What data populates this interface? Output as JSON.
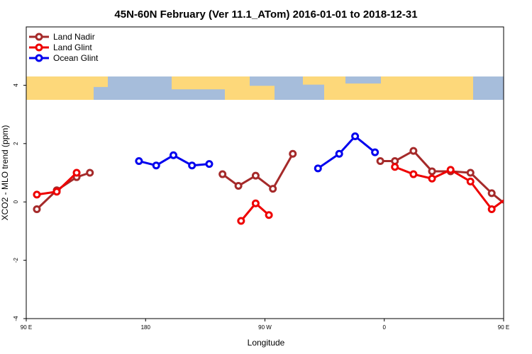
{
  "chart_data": {
    "type": "line",
    "title": "45N-60N February (Ver 11.1_ATom)   2016-01-01 to 2018-12-31",
    "xlabel": "Longitude",
    "ylabel": "XCO2 - MLO trend (ppm)",
    "xlim": [
      90,
      450
    ],
    "ylim": [
      -4,
      6
    ],
    "x_ticks": [
      {
        "value": 90,
        "label": "90 E"
      },
      {
        "value": 180,
        "label": "180"
      },
      {
        "value": 270,
        "label": "90 W"
      },
      {
        "value": 360,
        "label": "0"
      },
      {
        "value": 450,
        "label": "90 E"
      },
      {
        "value": 540,
        "label": "180"
      }
    ],
    "y_ticks": [
      {
        "value": -4,
        "label": "-4"
      },
      {
        "value": -2,
        "label": "-2"
      },
      {
        "value": 0,
        "label": "0"
      },
      {
        "value": 2,
        "label": "2"
      },
      {
        "value": 4,
        "label": "4"
      }
    ],
    "grid": false,
    "legend_position": "top-left",
    "map_strip": {
      "y_range": [
        3.5,
        4.3
      ],
      "ocean_color": "#a6bddb",
      "land_color": "#fdd87a"
    },
    "series": [
      {
        "name": "Land Nadir",
        "color": "#a52a2a",
        "segments": [
          {
            "x": [
              98,
              113,
              128,
              138
            ],
            "y": [
              -0.25,
              0.4,
              0.85,
              1.0
            ]
          },
          {
            "x": [
              238,
              250,
              263,
              276,
              291
            ],
            "y": [
              0.95,
              0.55,
              0.9,
              0.45,
              1.65
            ]
          },
          {
            "x": [
              357,
              368,
              382,
              396,
              410,
              425,
              441,
              456,
              470,
              485,
              498
            ],
            "y": [
              1.4,
              1.4,
              1.75,
              1.05,
              1.05,
              1.0,
              0.3,
              -0.25,
              0.4,
              0.85,
              1.0
            ]
          }
        ]
      },
      {
        "name": "Land Glint",
        "color": "#ee0000",
        "segments": [
          {
            "x": [
              98,
              113,
              128
            ],
            "y": [
              0.25,
              0.35,
              1.0
            ]
          },
          {
            "x": [
              252,
              263,
              273
            ],
            "y": [
              -0.65,
              -0.05,
              -0.45
            ]
          },
          {
            "x": [
              368,
              382,
              396,
              410,
              425,
              441,
              456,
              470,
              485
            ],
            "y": [
              1.2,
              0.95,
              0.8,
              1.1,
              0.7,
              -0.25,
              0.25,
              0.35,
              1.0
            ]
          }
        ]
      },
      {
        "name": "Ocean Glint",
        "color": "#0000ee",
        "segments": [
          {
            "x": [
              175,
              188,
              201,
              215,
              228
            ],
            "y": [
              1.4,
              1.25,
              1.6,
              1.25,
              1.3
            ]
          },
          {
            "x": [
              310,
              326,
              338,
              353
            ],
            "y": [
              1.15,
              1.65,
              2.25,
              1.7
            ]
          },
          {
            "x": [
              534
            ],
            "y": [
              1.4
            ]
          }
        ]
      }
    ]
  }
}
